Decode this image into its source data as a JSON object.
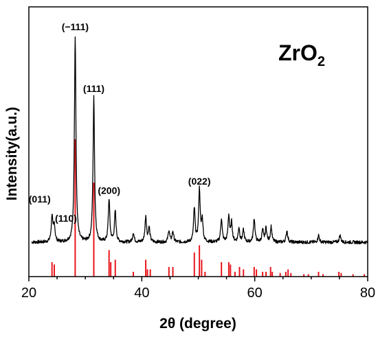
{
  "chart_data": {
    "type": "line",
    "title": "",
    "xlabel": "2θ (degree)",
    "ylabel": "Intensity(a.u.)",
    "xlim": [
      20,
      80
    ],
    "xticks": [
      "20",
      "40",
      "60",
      "80"
    ],
    "ylim": [
      0,
      100
    ],
    "grid": false,
    "compound": {
      "base": "ZrO",
      "subscript": "2"
    },
    "colors": {
      "pattern": "#000000",
      "reference": "#e8151b",
      "axes": "#000000"
    },
    "series": [
      {
        "kind": "xrd-pattern",
        "baseline": 13,
        "peaks": [
          {
            "x": 24.1,
            "y": 24
          },
          {
            "x": 24.5,
            "y": 20
          },
          {
            "x": 28.2,
            "y": 100
          },
          {
            "x": 31.5,
            "y": 74
          },
          {
            "x": 34.2,
            "y": 31
          },
          {
            "x": 35.3,
            "y": 26
          },
          {
            "x": 38.5,
            "y": 17
          },
          {
            "x": 40.7,
            "y": 24
          },
          {
            "x": 41.3,
            "y": 19
          },
          {
            "x": 44.8,
            "y": 18
          },
          {
            "x": 45.5,
            "y": 17.5
          },
          {
            "x": 49.3,
            "y": 27
          },
          {
            "x": 50.2,
            "y": 35
          },
          {
            "x": 50.7,
            "y": 22
          },
          {
            "x": 54.1,
            "y": 23
          },
          {
            "x": 55.4,
            "y": 24
          },
          {
            "x": 55.9,
            "y": 21
          },
          {
            "x": 57.2,
            "y": 19
          },
          {
            "x": 58.0,
            "y": 18
          },
          {
            "x": 59.9,
            "y": 23
          },
          {
            "x": 61.4,
            "y": 18
          },
          {
            "x": 62.0,
            "y": 19
          },
          {
            "x": 62.9,
            "y": 19.5
          },
          {
            "x": 65.7,
            "y": 18
          },
          {
            "x": 71.3,
            "y": 16
          },
          {
            "x": 75.1,
            "y": 16
          }
        ]
      },
      {
        "kind": "reference-sticks",
        "sticks": [
          {
            "x": 24.1,
            "h": 6
          },
          {
            "x": 24.5,
            "h": 5
          },
          {
            "x": 28.2,
            "h": 57
          },
          {
            "x": 31.5,
            "h": 39
          },
          {
            "x": 34.2,
            "h": 11
          },
          {
            "x": 34.5,
            "h": 6
          },
          {
            "x": 35.3,
            "h": 7
          },
          {
            "x": 38.5,
            "h": 2
          },
          {
            "x": 40.7,
            "h": 7
          },
          {
            "x": 41.0,
            "h": 3
          },
          {
            "x": 41.5,
            "h": 3
          },
          {
            "x": 44.8,
            "h": 4
          },
          {
            "x": 45.5,
            "h": 4
          },
          {
            "x": 49.3,
            "h": 10
          },
          {
            "x": 50.2,
            "h": 13
          },
          {
            "x": 50.6,
            "h": 7
          },
          {
            "x": 51.2,
            "h": 2
          },
          {
            "x": 54.1,
            "h": 6
          },
          {
            "x": 55.4,
            "h": 6
          },
          {
            "x": 55.7,
            "h": 5
          },
          {
            "x": 56.5,
            "h": 2
          },
          {
            "x": 57.3,
            "h": 4
          },
          {
            "x": 58.0,
            "h": 3
          },
          {
            "x": 59.9,
            "h": 4
          },
          {
            "x": 60.3,
            "h": 3
          },
          {
            "x": 61.4,
            "h": 2
          },
          {
            "x": 62.0,
            "h": 2
          },
          {
            "x": 62.8,
            "h": 4
          },
          {
            "x": 63.1,
            "h": 2
          },
          {
            "x": 64.5,
            "h": 1.5
          },
          {
            "x": 65.5,
            "h": 2
          },
          {
            "x": 65.9,
            "h": 3
          },
          {
            "x": 66.4,
            "h": 1.5
          },
          {
            "x": 68.7,
            "h": 1
          },
          {
            "x": 69.5,
            "h": 1
          },
          {
            "x": 71.3,
            "h": 2
          },
          {
            "x": 72.1,
            "h": 1
          },
          {
            "x": 74.9,
            "h": 2
          },
          {
            "x": 75.3,
            "h": 1.5
          },
          {
            "x": 77.4,
            "h": 1
          },
          {
            "x": 79.4,
            "h": 1
          }
        ]
      }
    ],
    "annotations": [
      {
        "text": "(011)",
        "x": 24.1,
        "anchor": "end"
      },
      {
        "text": "(110)",
        "x": 24.5,
        "anchor": "start"
      },
      {
        "text": "(−111)",
        "x": 28.2,
        "anchor": "middle"
      },
      {
        "text": "(111)",
        "x": 31.5,
        "anchor": "middle"
      },
      {
        "text": "(200)",
        "x": 34.2,
        "anchor": "middle"
      },
      {
        "text": "(022)",
        "x": 50.2,
        "anchor": "middle"
      }
    ]
  }
}
